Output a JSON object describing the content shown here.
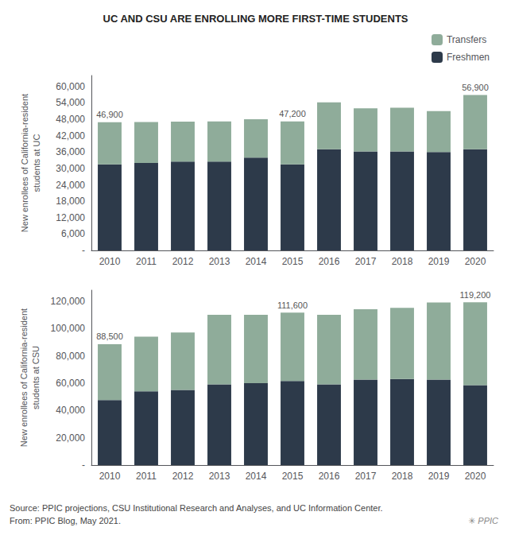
{
  "chart_data": [
    {
      "type": "bar",
      "title": "UC AND CSU ARE ENROLLING MORE FIRST-TIME STUDENTS",
      "ylabel": "New enrollees of California-resident\nstudents at UC",
      "categories": [
        2010,
        2011,
        2012,
        2013,
        2014,
        2015,
        2016,
        2017,
        2018,
        2019,
        2020
      ],
      "series": [
        {
          "name": "Freshmen",
          "color": "#2d3a4a",
          "values": [
            31500,
            32000,
            32500,
            32500,
            34000,
            31500,
            37000,
            36200,
            36200,
            36000,
            37000
          ]
        },
        {
          "name": "Transfers",
          "color": "#8fac9a",
          "values": [
            15400,
            15000,
            14600,
            14700,
            14000,
            15700,
            17200,
            15800,
            16000,
            15000,
            19900
          ]
        }
      ],
      "stacked": true,
      "legend": "top-right",
      "grid": false,
      "ylim": [
        0,
        64000
      ],
      "yticks": [
        {
          "value": 0,
          "label": "-"
        },
        {
          "value": 6000,
          "label": "6,000"
        },
        {
          "value": 12000,
          "label": "12,000"
        },
        {
          "value": 18000,
          "label": "18,000"
        },
        {
          "value": 24000,
          "label": "24,000"
        },
        {
          "value": 30000,
          "label": "30,000"
        },
        {
          "value": 36000,
          "label": "36,000"
        },
        {
          "value": 42000,
          "label": "42,000"
        },
        {
          "value": 48000,
          "label": "48,000"
        },
        {
          "value": 54000,
          "label": "54,000"
        },
        {
          "value": 60000,
          "label": "60,000"
        }
      ],
      "annotations": [
        {
          "text": "46,900",
          "x": 2010,
          "y": 46900
        },
        {
          "text": "47,200",
          "x": 2015,
          "y": 47200
        },
        {
          "text": "56,900",
          "x": 2020,
          "y": 56900
        }
      ]
    },
    {
      "type": "bar",
      "ylabel": "New enrollees of California-resident\nstudents at CSU",
      "categories": [
        2010,
        2011,
        2012,
        2013,
        2014,
        2015,
        2016,
        2017,
        2018,
        2019,
        2020
      ],
      "series": [
        {
          "name": "Freshmen",
          "color": "#2d3a4a",
          "values": [
            47500,
            54000,
            55000,
            59000,
            60000,
            61500,
            59000,
            62500,
            63000,
            62500,
            58500
          ]
        },
        {
          "name": "Transfers",
          "color": "#8fac9a",
          "values": [
            41000,
            40000,
            42000,
            51000,
            50000,
            50100,
            51000,
            51500,
            52000,
            56500,
            60700
          ]
        }
      ],
      "stacked": true,
      "grid": false,
      "ylim": [
        0,
        128000
      ],
      "yticks": [
        {
          "value": 0,
          "label": "-"
        },
        {
          "value": 20000,
          "label": "20,000"
        },
        {
          "value": 40000,
          "label": "40,000"
        },
        {
          "value": 60000,
          "label": "60,000"
        },
        {
          "value": 80000,
          "label": "80,000"
        },
        {
          "value": 100000,
          "label": "100,000"
        },
        {
          "value": 120000,
          "label": "120,000"
        }
      ],
      "annotations": [
        {
          "text": "88,500",
          "x": 2010,
          "y": 88500
        },
        {
          "text": "111,600",
          "x": 2015,
          "y": 111600
        },
        {
          "text": "119,200",
          "x": 2020,
          "y": 119200
        }
      ],
      "notes": [
        "Source: PPIC projections, CSU Institutional Research and Analyses, and UC Information Center.\nFrom: PPIC Blog, May 2021.",
        "✳ PPIC"
      ]
    }
  ]
}
